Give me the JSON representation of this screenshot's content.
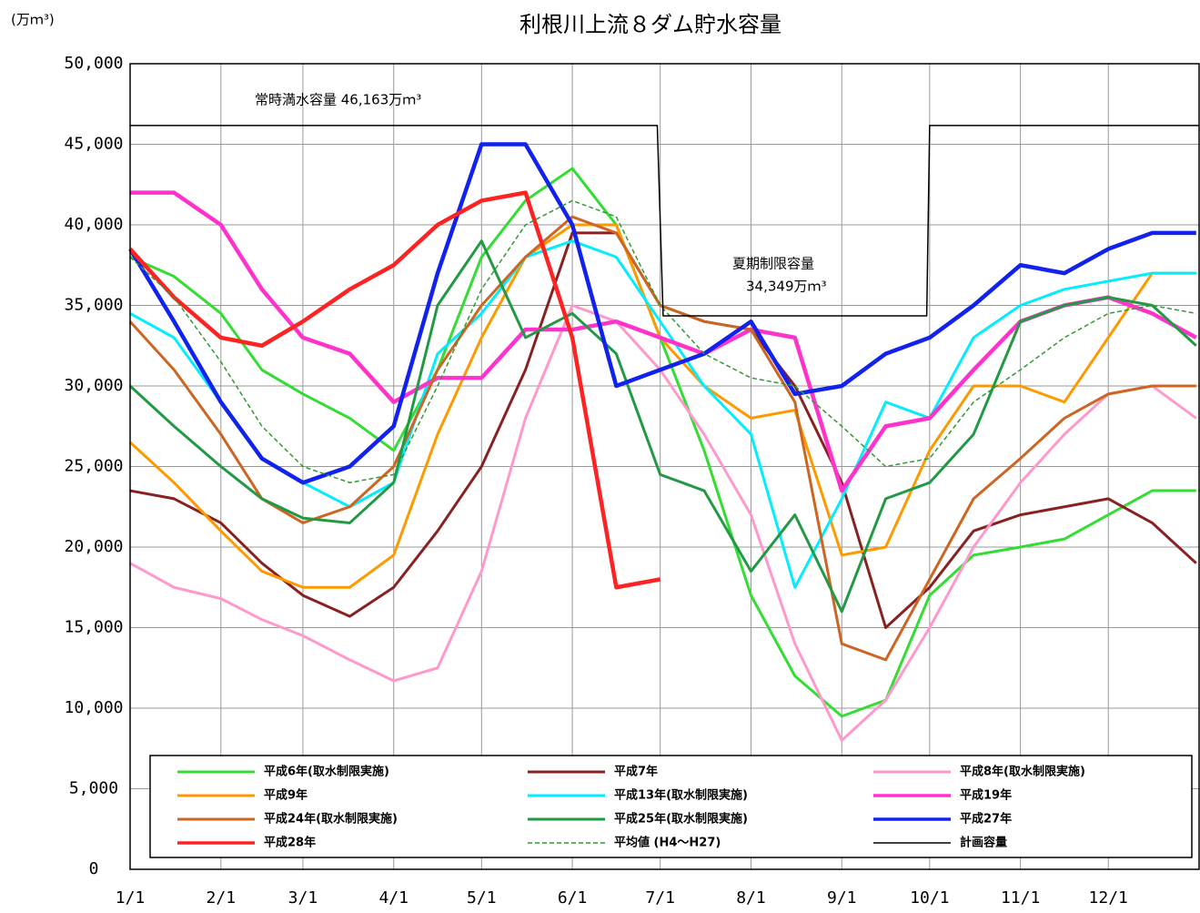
{
  "chart_data": {
    "type": "line",
    "title": "利根川上流８ダム貯水容量",
    "y_label": "(万ｍ³)",
    "annotations": [
      "常時満水容量 46,163万ｍ³",
      "夏期制限容量",
      "34,349万ｍ³"
    ],
    "xlim": [
      0,
      365
    ],
    "xticks": [
      {
        "value": 0,
        "label": "1/1"
      },
      {
        "value": 31,
        "label": "2/1"
      },
      {
        "value": 59,
        "label": "3/1"
      },
      {
        "value": 90,
        "label": "4/1"
      },
      {
        "value": 120,
        "label": "5/1"
      },
      {
        "value": 151,
        "label": "6/1"
      },
      {
        "value": 181,
        "label": "7/1"
      },
      {
        "value": 212,
        "label": "8/1"
      },
      {
        "value": 243,
        "label": "9/1"
      },
      {
        "value": 273,
        "label": "10/1"
      },
      {
        "value": 304,
        "label": "11/1"
      },
      {
        "value": 334,
        "label": "12/1"
      }
    ],
    "ylim": [
      0,
      50000
    ],
    "yticks": [
      0,
      {
        "value": 5000,
        "label": "5,000"
      },
      {
        "value": 10000,
        "label": "10,000"
      },
      {
        "value": 15000,
        "label": "15,000"
      },
      {
        "value": 20000,
        "label": "20,000"
      },
      {
        "value": 25000,
        "label": "25,000"
      },
      {
        "value": 30000,
        "label": "30,000"
      },
      {
        "value": 35000,
        "label": "35,000"
      },
      {
        "value": 40000,
        "label": "40,000"
      },
      {
        "value": 45000,
        "label": "45,000"
      },
      {
        "value": 50000,
        "label": "50,000"
      }
    ],
    "grid": true,
    "x": [
      0,
      15,
      31,
      45,
      59,
      75,
      90,
      105,
      120,
      135,
      151,
      166,
      181,
      196,
      212,
      227,
      243,
      258,
      273,
      288,
      304,
      319,
      334,
      349,
      364
    ],
    "series": [
      {
        "name": "平成6年(取水制限実施)",
        "color": "#33dd33",
        "width": 3,
        "values": [
          38000,
          36800,
          34500,
          31000,
          29500,
          28000,
          26000,
          31000,
          38000,
          41500,
          43500,
          40000,
          33000,
          26000,
          17000,
          12000,
          9500,
          10500,
          17000,
          19500,
          20000,
          20500,
          22000,
          23500,
          23500
        ]
      },
      {
        "name": "平成7年",
        "color": "#882222",
        "width": 3,
        "values": [
          23500,
          23000,
          21500,
          19000,
          17000,
          15700,
          17500,
          21000,
          25000,
          31000,
          39500,
          39500,
          35000,
          34000,
          33500,
          30000,
          24000,
          15000,
          17500,
          21000,
          22000,
          22500,
          23000,
          21500,
          19000
        ]
      },
      {
        "name": "平成8年(取水制限実施)",
        "color": "#ff99cc",
        "width": 3,
        "values": [
          19000,
          17500,
          16800,
          15500,
          14500,
          13000,
          11700,
          12500,
          18500,
          28000,
          35000,
          34000,
          31000,
          27000,
          22000,
          14000,
          8000,
          10500,
          15000,
          20000,
          24000,
          27000,
          29500,
          30000,
          28000
        ]
      },
      {
        "name": "平成9年",
        "color": "#ff9900",
        "width": 3,
        "values": [
          26500,
          24000,
          21000,
          18500,
          17500,
          17500,
          19500,
          27000,
          33000,
          38000,
          40000,
          40000,
          33000,
          30000,
          28000,
          28500,
          19500,
          20000,
          26000,
          30000,
          30000,
          29000,
          33000,
          37000,
          37000
        ]
      },
      {
        "name": "平成13年(取水制限実施)",
        "color": "#00eeff",
        "width": 3,
        "values": [
          34500,
          33000,
          29000,
          25500,
          24000,
          22500,
          24000,
          32000,
          34500,
          38000,
          39000,
          38000,
          34000,
          30000,
          27000,
          17500,
          23000,
          29000,
          28000,
          33000,
          35000,
          36000,
          36500,
          37000,
          37000
        ]
      },
      {
        "name": "平成19年",
        "color": "#ff33cc",
        "width": 4.5,
        "values": [
          42000,
          42000,
          40000,
          36000,
          33000,
          32000,
          29000,
          30500,
          30500,
          33500,
          33500,
          34000,
          33000,
          32000,
          33500,
          33000,
          23500,
          27500,
          28000,
          31000,
          34000,
          35000,
          35500,
          34500,
          33000
        ]
      },
      {
        "name": "平成24年(取水制限実施)",
        "color": "#cc6622",
        "width": 3,
        "values": [
          34000,
          31000,
          27000,
          23000,
          21500,
          22500,
          25000,
          31000,
          35000,
          38000,
          40500,
          39500,
          35000,
          34000,
          33500,
          29000,
          14000,
          13000,
          18000,
          23000,
          25500,
          28000,
          29500,
          30000,
          30000
        ]
      },
      {
        "name": "平成25年(取水制限実施)",
        "color": "#229944",
        "width": 3,
        "values": [
          30000,
          27500,
          25000,
          23000,
          21800,
          21500,
          24000,
          35000,
          39000,
          33000,
          34500,
          32000,
          24500,
          23500,
          18500,
          22000,
          16000,
          23000,
          24000,
          27000,
          34000,
          35000,
          35500,
          35000,
          32500
        ]
      },
      {
        "name": "平成27年",
        "color": "#1122ee",
        "width": 4.5,
        "values": [
          38500,
          34000,
          29000,
          25500,
          24000,
          25000,
          27500,
          37000,
          45000,
          45000,
          40000,
          30000,
          31000,
          32000,
          34000,
          29500,
          30000,
          32000,
          33000,
          35000,
          37500,
          37000,
          38500,
          39500,
          39500
        ]
      },
      {
        "name": "平成28年",
        "color": "#ff2222",
        "width": 4.5,
        "values": [
          38500,
          35500,
          33000,
          32500,
          34000,
          36000,
          37500,
          40000,
          41500,
          42000,
          33000,
          17500,
          18000,
          null,
          null,
          null,
          null,
          null,
          null,
          null,
          null,
          null,
          null,
          null,
          null
        ]
      },
      {
        "name": "平均値 (H4～H27)",
        "color": "#339933",
        "width": 1.5,
        "dash": true,
        "values": [
          38000,
          35500,
          31500,
          27500,
          25000,
          24000,
          24500,
          30000,
          36000,
          40000,
          41500,
          40500,
          35000,
          32000,
          30500,
          30000,
          27500,
          25000,
          25500,
          29000,
          31000,
          33000,
          34500,
          35000,
          34500
        ]
      },
      {
        "name": "計画容量",
        "color": "#000000",
        "width": 1.5,
        "x": [
          0,
          180,
          182,
          272,
          273,
          365
        ],
        "values": [
          46163,
          46163,
          34349,
          34349,
          46163,
          46163
        ]
      }
    ]
  }
}
